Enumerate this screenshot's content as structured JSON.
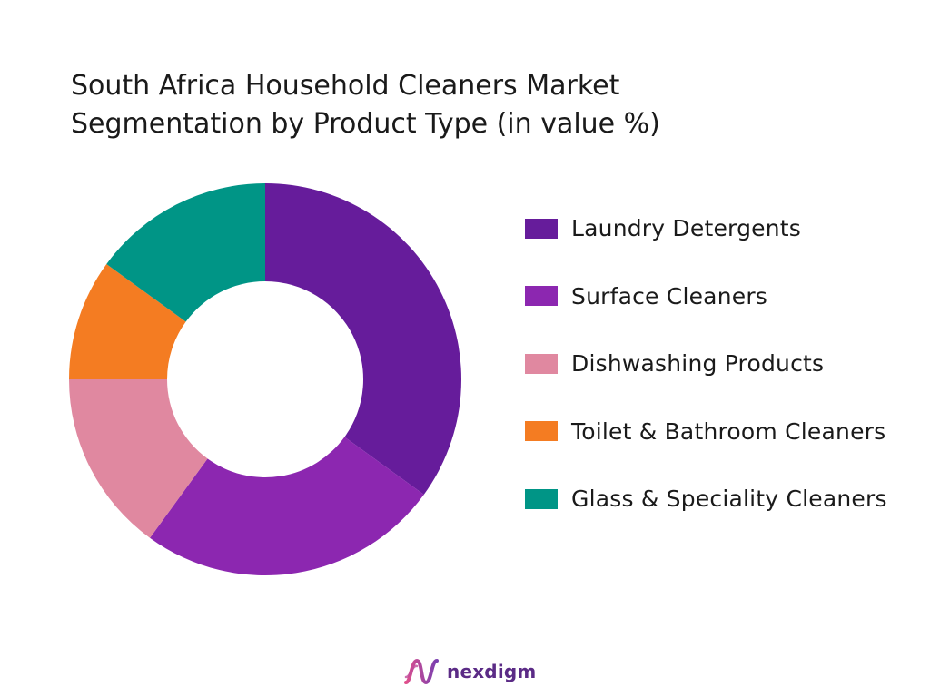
{
  "title_lines": [
    "South Africa Household Cleaners Market",
    "Segmentation by Product Type (in value %)"
  ],
  "brand": {
    "name": "nexdigm",
    "icon": "nexdigm-logo-icon"
  },
  "chart_data": {
    "type": "pie",
    "variant": "donut",
    "title": "South Africa Household Cleaners Market Segmentation by Product Type (in value %)",
    "legend_position": "right",
    "categories": [
      "Laundry Detergents",
      "Surface Cleaners",
      "Dishwashing Products",
      "Toilet & Bathroom Cleaners",
      "Glass & Speciality Cleaners"
    ],
    "values": [
      35,
      25,
      15,
      10,
      15
    ],
    "colors": [
      "#661c9b",
      "#8c27b0",
      "#e088a0",
      "#f47c22",
      "#009586"
    ]
  }
}
